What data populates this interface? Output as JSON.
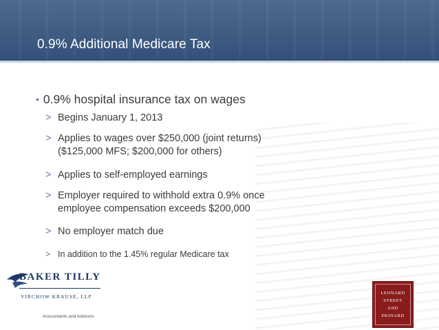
{
  "slide": {
    "title": "0.9% Additional Medicare Tax",
    "bullet": {
      "marker": "•",
      "text": "0.9% hospital insurance tax on wages"
    },
    "sub_marker": ">",
    "sub_items": [
      {
        "line1": "Begins January 1, 2013"
      },
      {
        "line1": "Applies to wages over $250,000 (joint returns)",
        "line2": "($125,000 MFS; $200,000 for others)"
      },
      {
        "line1": "Applies to self-employed earnings"
      },
      {
        "line1": "Employer required to withhold extra 0.9% once",
        "line2": "employee compensation exceeds $200,000"
      },
      {
        "line1": "No employer match due"
      },
      {
        "line1": "In addition to the 1.45% regular Medicare tax"
      }
    ]
  },
  "logos": {
    "left": {
      "name": "BAKER TILLY",
      "tagline": "VIRCHOW KRAUSE, LLP",
      "descriptor": "Accountants and Advisors",
      "color": "#1f3864"
    },
    "right": {
      "lines": [
        "LEONARD",
        "STREET",
        "AND",
        "DEINARD"
      ],
      "color": "#8a1c1c"
    }
  },
  "colors": {
    "header": "#3f5c82",
    "accent": "#5a7ba6",
    "text": "#3b3b3b"
  }
}
